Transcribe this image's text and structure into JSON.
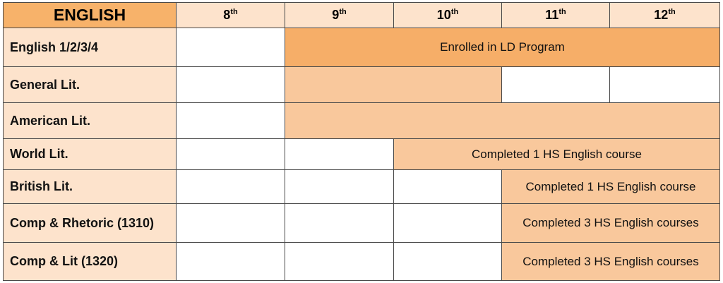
{
  "header": {
    "title": "ENGLISH",
    "grades": [
      {
        "number": "8",
        "suffix": "th"
      },
      {
        "number": "9",
        "suffix": "th"
      },
      {
        "number": "10",
        "suffix": "th"
      },
      {
        "number": "11",
        "suffix": "th"
      },
      {
        "number": "12",
        "suffix": "th"
      }
    ]
  },
  "rows": [
    {
      "course": "English 1/2/3/4",
      "requirement": "Enrolled in LD Program"
    },
    {
      "course": "General Lit."
    },
    {
      "course": "American Lit."
    },
    {
      "course": "World Lit.",
      "requirement": "Completed 1 HS English course"
    },
    {
      "course": "British Lit.",
      "requirement": "Completed 1 HS English course"
    },
    {
      "course": "Comp & Rhetoric (1310)",
      "requirement": "Completed 3 HS English courses"
    },
    {
      "course": "Comp & Lit (1320)",
      "requirement": "Completed 3 HS English courses"
    }
  ]
}
